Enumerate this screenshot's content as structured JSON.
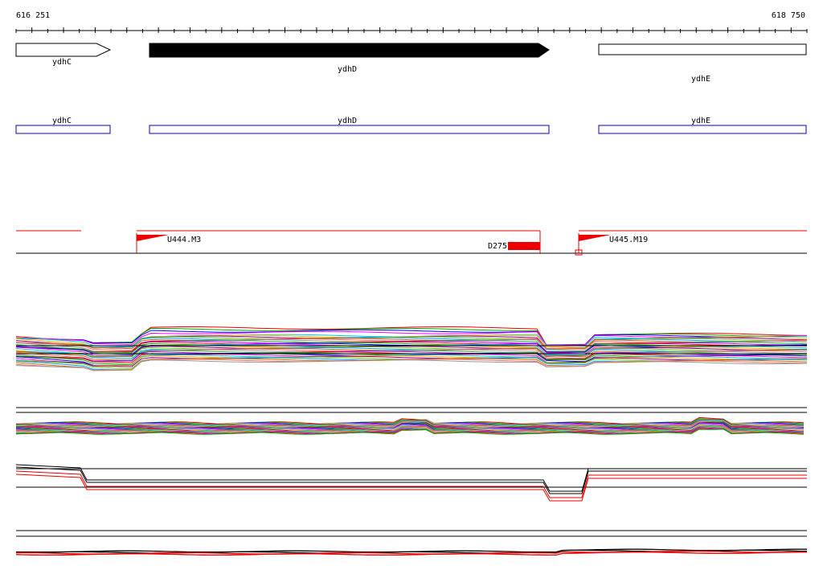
{
  "ruler": {
    "start": "616 251",
    "end": "618 750"
  },
  "genes": [
    {
      "label": "ydhC"
    },
    {
      "label": "ydhD"
    },
    {
      "label": "ydhE"
    }
  ],
  "boxes": [
    {
      "label": "ydhC"
    },
    {
      "label": "ydhD"
    },
    {
      "label": "ydhE"
    }
  ],
  "features": [
    {
      "label": "U444.M3"
    },
    {
      "label": "D275"
    },
    {
      "label": "U445.M19"
    }
  ]
}
